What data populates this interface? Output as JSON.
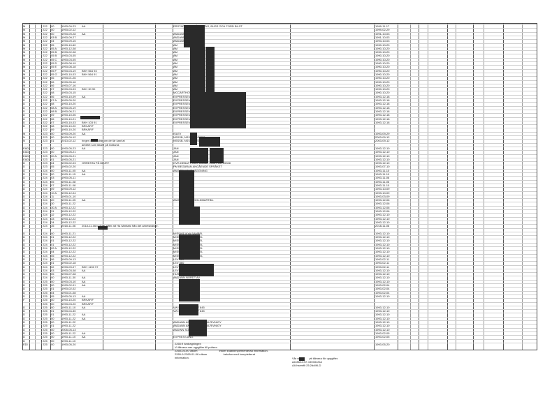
{
  "rows": [
    {
      "type": "M",
      "id": "222",
      "sub": "00",
      "date": "1993-09-23",
      "note": "AA",
      "desc": "ERSTAD, ÖSTERÅKERVÄG, BUSS OCH FORD BILST",
      "entry": "1999-11-17"
    },
    {
      "type": "M",
      "id": "222",
      "sub": "00",
      "date": "1993-02-12",
      "note": "",
      "desc": "",
      "entry": "1999-02-29"
    },
    {
      "type": "M",
      "id": "222",
      "sub": "00",
      "date": "1993-09-28",
      "note": "AA",
      "desc": "ANDANN",
      "entry": "1991-10-03"
    },
    {
      "type": "M",
      "id": "222",
      "sub": "03 B",
      "date": "1993-09-27",
      "note": "",
      "desc": "ANDANN",
      "entry": "1991-10-03"
    },
    {
      "type": "M",
      "id": "222",
      "sub": "04",
      "date": "1993-09-15",
      "note": "",
      "desc": "ANDANN",
      "entry": "1993-10-03"
    },
    {
      "type": "M",
      "id": "222",
      "sub": "05",
      "date": "1993-10-60",
      "note": "",
      "desc": "AM",
      "entry": "1990-10-20"
    },
    {
      "type": "M",
      "id": "222",
      "sub": "05 A",
      "date": "1993-12-08",
      "note": "",
      "desc": "AM",
      "entry": "1990-10-20"
    },
    {
      "type": "M",
      "id": "222",
      "sub": "05 B",
      "date": "1993-02-08",
      "note": "",
      "desc": "AM",
      "entry": "1990-10-20"
    },
    {
      "type": "M",
      "id": "222",
      "sub": "05 B",
      "date": "1993-03-05",
      "note": "",
      "desc": "AM",
      "entry": "1990-10-20"
    },
    {
      "type": "M",
      "id": "222",
      "sub": "05 C",
      "date": "1993-03-05",
      "note": "",
      "desc": "AM",
      "entry": "1990-10-20"
    },
    {
      "type": "M",
      "id": "222",
      "sub": "05 D",
      "date": "1993-08-19",
      "note": "",
      "desc": "AM",
      "entry": "1990-10-20"
    },
    {
      "type": "M",
      "id": "222",
      "sub": "05 E",
      "date": "1993-08-18",
      "note": "",
      "desc": "AM",
      "entry": "1990-10-20"
    },
    {
      "type": "M",
      "id": "222",
      "sub": "05 F",
      "date": "1993-03-19",
      "note": "BKH 564 93",
      "desc": "AM",
      "entry": "1990-10-20"
    },
    {
      "type": "M",
      "id": "222",
      "sub": "05 G",
      "date": "1993-10-03",
      "note": "BKH 564 91",
      "desc": "AM",
      "entry": "1990-10-20"
    },
    {
      "type": "M",
      "id": "222",
      "sub": "06",
      "date": "1993-01-26",
      "note": "",
      "desc": "AM",
      "entry": "1990-10-20"
    },
    {
      "type": "M",
      "id": "222",
      "sub": "06",
      "date": "1993-05-16",
      "note": "",
      "desc": "AM",
      "entry": "1990-10-20"
    },
    {
      "type": "M",
      "id": "222",
      "sub": "06",
      "date": "1993-07-16",
      "note": "",
      "desc": "AM",
      "entry": "1990-10-20"
    },
    {
      "type": "M",
      "id": "222",
      "sub": "07",
      "date": "1993-03-03",
      "note": "BKH 30 90",
      "desc": "AM",
      "entry": "1990-10-20"
    },
    {
      "type": "M",
      "id": "222",
      "sub": "08",
      "date": "1993-03-15",
      "note": "",
      "desc": "MCCARTHON",
      "entry": "1990-10-20"
    },
    {
      "type": "D",
      "id": "222",
      "sub": "06",
      "date": "1993-10-09",
      "note": "AA",
      "desc": "EXPRESSEN ANG",
      "entry": "1993-12-18"
    },
    {
      "type": "D",
      "id": "222",
      "sub": "07 A",
      "date": "1993-05-20",
      "note": "",
      "desc": "EXPRESSEN ANG",
      "entry": "1993-12-18"
    },
    {
      "type": "D",
      "id": "222",
      "sub": "08",
      "date": "1993-10-20",
      "note": "",
      "desc": "EXPRESSEN ANG",
      "entry": "1993-12-18"
    },
    {
      "type": "D",
      "id": "222",
      "sub": "08 A",
      "date": "1993-05-19",
      "note": "",
      "desc": "EXPRESSEN ANG",
      "entry": "1993-12-18"
    },
    {
      "type": "D",
      "id": "222",
      "sub": "08 B",
      "date": "1993-06-21",
      "note": "",
      "desc": "EXPRESSEN ANG",
      "entry": "1993-12-18"
    },
    {
      "type": "D",
      "id": "222",
      "sub": "09",
      "date": "1993-10-06",
      "note": "",
      "desc": "EXPRESSEN ANG",
      "entry": "1993-12-18"
    },
    {
      "type": "D",
      "id": "222",
      "sub": "06",
      "date": "1993-10-21",
      "note": "",
      "desc": "EXPRESSEN ANG",
      "entry": "1993-12-18"
    },
    {
      "type": "D",
      "id": "222",
      "sub": "07",
      "date": "1993-10-03",
      "note": "BKH 103 91",
      "desc": "EXPRESSEN ANG",
      "entry": "1993-12-18"
    },
    {
      "type": "D",
      "id": "222",
      "sub": "08",
      "date": "1993-10-20",
      "note": "BRKAFIF",
      "desc": "",
      "entry": ""
    },
    {
      "type": "",
      "id": "222",
      "sub": "09",
      "date": "1993-10-20",
      "note": "BRKAFIF",
      "desc": "",
      "entry": ""
    },
    {
      "type": "M",
      "id": "223",
      "sub": "00",
      "date": "1993-09-20",
      "note": "AA",
      "desc": "ISLEV",
      "entry": "1993-09-29"
    },
    {
      "type": "N",
      "id": "223",
      "sub": "00",
      "date": "1993-09-12",
      "note": "",
      "desc": "NSSSB, NSSSS, NSSSG",
      "entry": "2003-09-12"
    },
    {
      "type": "N",
      "id": "223",
      "sub": "01",
      "date": "2013-02-12",
      "note": "ringer och undrar om det är kant at",
      "desc": "NSSSB, NSSSS, NSSSG",
      "entry": "2003-09-12"
    },
    {
      "type": "",
      "id": "",
      "sub": "",
      "date": "",
      "note": "arbetet som lätare på Gotland.",
      "desc": "",
      "entry": ""
    },
    {
      "type": "EAD",
      "id": "223",
      "sub": "00",
      "date": "1993-05-23",
      "note": "AA",
      "desc": "JAN",
      "entry": "1993-12-10"
    },
    {
      "type": "EAD",
      "id": "223",
      "sub": "00",
      "date": "1993-05-21",
      "note": "",
      "desc": "JAN",
      "entry": "1993-12-10"
    },
    {
      "type": "EAD",
      "id": "223",
      "sub": "00 A",
      "date": "1993-05-21",
      "note": "",
      "desc": "JAN",
      "entry": "1993-12-10"
    },
    {
      "type": "EAD",
      "id": "223",
      "sub": "01",
      "date": "1993-05-21",
      "note": "",
      "desc": "JAN",
      "entry": "1993-12-10"
    },
    {
      "type": "D",
      "id": "223",
      "sub": "04",
      "date": "1993-02-03",
      "note": "ORRESTA PÅ DEJRT",
      "desc": "OVR-DEBATT OCH VAGAR 1993 FOR 15308",
      "entry": "1993-12-10"
    },
    {
      "type": "D",
      "id": "223",
      "sub": "05",
      "date": "1993-02-20",
      "note": "",
      "desc": "PM BEGÄRAN ANGÅENDE SPRÅKET",
      "entry": "1993-07-10"
    },
    {
      "type": "D",
      "id": "224",
      "sub": "00",
      "date": "1993-11-05",
      "note": "AA",
      "desc": "ANG EN HANDLÄGGNING",
      "entry": "1993-11-10"
    },
    {
      "type": "D",
      "id": "224",
      "sub": "00",
      "date": "1993-11-15",
      "note": "AA",
      "desc": "",
      "entry": "1993-11-10"
    },
    {
      "type": "D",
      "id": "224",
      "sub": "03",
      "date": "1993-05-11",
      "note": "",
      "desc": "",
      "entry": "1993-11-06"
    },
    {
      "type": "D",
      "id": "224",
      "sub": "05",
      "date": "1993-11-08",
      "note": "",
      "desc": "",
      "entry": "1993-11-06"
    },
    {
      "type": "D",
      "id": "224",
      "sub": "07",
      "date": "1993-11-08",
      "note": "",
      "desc": "",
      "entry": "1993-11-10"
    },
    {
      "type": "D",
      "id": "224",
      "sub": "09",
      "date": "1993-09-12",
      "note": "",
      "desc": "",
      "entry": "1993-10-09"
    },
    {
      "type": "D",
      "id": "224",
      "sub": "10 A",
      "date": "1993-12-04",
      "note": "",
      "desc": "",
      "entry": "1993-10-09"
    },
    {
      "type": "D",
      "id": "224",
      "sub": "11",
      "date": "1993-01-10",
      "note": "",
      "desc": "",
      "entry": "1993-03-09"
    },
    {
      "type": "D",
      "id": "224",
      "sub": "20",
      "date": "1993-11-05",
      "note": "AA",
      "desc": "ANGVING ANG GOLDMARTBIL",
      "entry": "1993-12-06"
    },
    {
      "type": "D",
      "id": "224",
      "sub": "30",
      "date": "1993-11-22",
      "note": "",
      "desc": "",
      "entry": "1993-12-06"
    },
    {
      "type": "D",
      "id": "224",
      "sub": "30 A",
      "date": "1993-12-22",
      "note": "",
      "desc": "",
      "entry": "1993-12-06"
    },
    {
      "type": "D",
      "id": "224",
      "sub": "31",
      "date": "1993-12-22",
      "note": "",
      "desc": "",
      "entry": "1993-12-06"
    },
    {
      "type": "D",
      "id": "224",
      "sub": "32",
      "date": "1993-12-22",
      "note": "",
      "desc": "",
      "entry": "1993-12-10"
    },
    {
      "type": "D",
      "id": "224",
      "sub": "33",
      "date": "1993-12-22",
      "note": "",
      "desc": "",
      "entry": "1993-12-10"
    },
    {
      "type": "D",
      "id": "224",
      "sub": "34",
      "date": "1993-12-22",
      "note": "",
      "desc": "",
      "entry": "1993-12-10"
    },
    {
      "type": "D",
      "id": "224",
      "sub": "35",
      "date": "2018-11-06",
      "note": "2018-11-06  bulldre affter att Ha hämtats från det arbetsbände.",
      "desc": "",
      "entry": "2018-11-06"
    },
    {
      "type": "",
      "id": "",
      "sub": "",
      "date": "",
      "note": "",
      "desc": "",
      "entry": ""
    },
    {
      "type": "D",
      "id": "224",
      "sub": "00",
      "date": "1993-11-21",
      "note": "",
      "desc": "MISSIVE NYA SAMBEL",
      "entry": "1993-12-10"
    },
    {
      "type": "D",
      "id": "224",
      "sub": "01",
      "date": "1993-12-22",
      "note": "",
      "desc": "MISSIVE NYA SAMBEL",
      "entry": "1993-12-10"
    },
    {
      "type": "D",
      "id": "224",
      "sub": "01",
      "date": "1993-12-22",
      "note": "",
      "desc": "MISSIVE NYA SAMBEL",
      "entry": "1993-12-10"
    },
    {
      "type": "D",
      "id": "224",
      "sub": "01",
      "date": "1993-12-22",
      "note": "",
      "desc": "MISSIVE NYA SAMBEL",
      "entry": "1993-12-10"
    },
    {
      "type": "D",
      "id": "224",
      "sub": "02 A",
      "date": "1993-12-22",
      "note": "",
      "desc": "MISSIVE NYA SAMBEL",
      "entry": "1993-12-10"
    },
    {
      "type": "D",
      "id": "224",
      "sub": "04",
      "date": "1993-12-22",
      "note": "",
      "desc": "MISSIVE NYA SAMBEL",
      "entry": "1993-12-10"
    },
    {
      "type": "D",
      "id": "224",
      "sub": "05",
      "date": "1993-12-22",
      "note": "",
      "desc": "MISSIVE NYA SAMBEL",
      "entry": "1993-12-10"
    },
    {
      "type": "D",
      "id": "224",
      "sub": "06",
      "date": "1993-09-13",
      "note": "",
      "desc": "LEV 860",
      "entry": "1993-02-11"
    },
    {
      "type": "D",
      "id": "224",
      "sub": "01",
      "date": "1993-02-18",
      "note": "",
      "desc": "LEV 860",
      "entry": "1993-02-11"
    },
    {
      "type": "D",
      "id": "224",
      "sub": "02",
      "date": "1993-09-07",
      "note": "BKH 1150 97",
      "desc": "LEV 860",
      "entry": "1993-02-11"
    },
    {
      "type": "D",
      "id": "224",
      "sub": "03",
      "date": "1993-03-08",
      "note": "AA",
      "desc": "LEV 860",
      "entry": "1993-12-10"
    },
    {
      "type": "D",
      "id": "224",
      "sub": "05",
      "date": "1993-07-08",
      "note": "",
      "desc": "HUS - DODGOGRA",
      "entry": "1993-12-10"
    },
    {
      "type": "D",
      "id": "224",
      "sub": "00",
      "date": "1993-11-30",
      "note": "AA",
      "desc": "ANDANN NORDT AV",
      "entry": "1993-12-10"
    },
    {
      "type": "D",
      "id": "225",
      "sub": "00",
      "date": "1993-03-10",
      "note": "AA",
      "desc": "",
      "entry": "1993-12-10"
    },
    {
      "type": "D",
      "id": "225",
      "sub": "00",
      "date": "1993-02-01",
      "note": "AA",
      "desc": "",
      "entry": "1993-02-04"
    },
    {
      "type": "D",
      "id": "225",
      "sub": "01",
      "date": "1993-02-02",
      "note": "",
      "desc": "",
      "entry": "1993-02-04"
    },
    {
      "type": "D",
      "id": "225",
      "sub": "04",
      "date": "1993-01-08",
      "note": "",
      "desc": "",
      "entry": "1993-02-04"
    },
    {
      "type": "D",
      "id": "225",
      "sub": "05",
      "date": "1993-05-13",
      "note": "AA",
      "desc": "",
      "entry": "1993-12-10"
    },
    {
      "type": "F",
      "id": "225",
      "sub": "00",
      "date": "1993-10-20",
      "note": "BRKAFIF",
      "desc": "",
      "entry": ""
    },
    {
      "type": "",
      "id": "225",
      "sub": "00",
      "date": "1993-03-20",
      "note": "BRKAFIF",
      "desc": "",
      "entry": ""
    },
    {
      "type": "D",
      "id": "225",
      "sub": "00",
      "date": "1993-11-10",
      "note": "AA",
      "desc": "VW K30, reg nr GNF 845",
      "entry": "1993-12-10"
    },
    {
      "type": "D",
      "id": "225",
      "sub": "01",
      "date": "1993-04-30",
      "note": "",
      "desc": "VW K30, reg nr GNF 845",
      "entry": "1993-12-10"
    },
    {
      "type": "D",
      "id": "225",
      "sub": "01",
      "date": "1993-11-22",
      "note": "AA",
      "desc": "",
      "entry": "1993-12-10"
    },
    {
      "type": "D",
      "id": "225",
      "sub": "00",
      "date": "1993-11-22",
      "note": "AA",
      "desc": "",
      "entry": "1993-12-10"
    },
    {
      "type": "D",
      "id": "225",
      "sub": "00",
      "date": "1993-11-22",
      "note": "",
      "desc": "ANDANN ANG ELGSELL BILRIVNIGY",
      "entry": "1993-12-10"
    },
    {
      "type": "D",
      "id": "225",
      "sub": "01",
      "date": "1993-11-22",
      "note": "",
      "desc": "ANDANN ANG ELGSELL BILRIVNIGY",
      "entry": "1993-12-10"
    },
    {
      "type": "D",
      "id": "225",
      "sub": "00",
      "date": "2005-05-13",
      "note": "",
      "desc": "ANDINN SOM",
      "entry": "1993-12-10"
    },
    {
      "type": "D",
      "id": "225",
      "sub": "00",
      "date": "1993-11-22",
      "note": "AA",
      "desc": "",
      "entry": "1993-02-05"
    },
    {
      "type": "D",
      "id": "225",
      "sub": "00",
      "date": "1993-11-10",
      "note": "AA",
      "desc": "EXPRESS ANG",
      "entry": "1993-02-05"
    },
    {
      "type": "D",
      "id": "225",
      "sub": "00",
      "date": "1993-11-10",
      "note": "",
      "desc": "",
      "entry": ""
    },
    {
      "type": "EDI",
      "id": "225",
      "sub": "00",
      "date": "1993-05-20",
      "note": "",
      "desc": "",
      "entry": "1993-05-20"
    }
  ],
  "notes": {
    "left": "2265:9 ändragningen\nVi tillmera mer uppgifter till polisen\n2265-03-00 utkom                            intom snabbimplementerad information.\n2265-9-2265-01-06 utkom                     bekräm med kompletterat\ninformation.",
    "right": "Vår sikt          ytt tillmera för uppgifter.\nAA 864-4XX 150331/DA\nAA hsemflt 25.2ddIKLD"
  }
}
